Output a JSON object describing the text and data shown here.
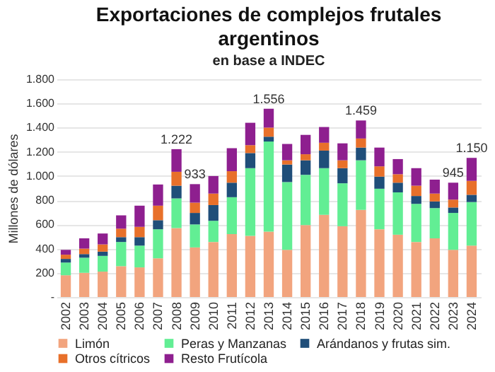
{
  "chart_data": {
    "type": "bar",
    "stacked": true,
    "title": [
      "Exportaciones de complejos frutales",
      "argentinos"
    ],
    "subtitle": "en base a INDEC",
    "ylabel": "Millones de dólares",
    "categories": [
      "2002",
      "2003",
      "2004",
      "2005",
      "2006",
      "2007",
      "2008",
      "2009",
      "2010",
      "2011",
      "2012",
      "2013",
      "2014",
      "2015",
      "2016",
      "2017",
      "2018",
      "2019",
      "2020",
      "2021",
      "2022",
      "2023",
      "2024"
    ],
    "series": [
      {
        "name": "Limón",
        "color": "#f2a47e",
        "values": [
          180,
          200,
          210,
          255,
          245,
          320,
          570,
          410,
          455,
          520,
          505,
          540,
          390,
          595,
          680,
          585,
          720,
          560,
          515,
          455,
          485,
          390,
          425
        ]
      },
      {
        "name": "Peras y Manzanas",
        "color": "#62ee94",
        "values": [
          105,
          125,
          130,
          200,
          180,
          240,
          245,
          190,
          175,
          305,
          560,
          745,
          560,
          415,
          385,
          355,
          410,
          335,
          350,
          315,
          250,
          305,
          360
        ]
      },
      {
        "name": "Arándanos y frutas sim.",
        "color": "#1f4e79",
        "values": [
          30,
          30,
          35,
          40,
          70,
          75,
          105,
          95,
          130,
          120,
          125,
          40,
          145,
          120,
          145,
          125,
          105,
          100,
          80,
          65,
          55,
          45,
          60
        ]
      },
      {
        "name": "Otros cítricos",
        "color": "#e8702a",
        "values": [
          35,
          45,
          60,
          70,
          85,
          120,
          115,
          85,
          95,
          95,
          65,
          75,
          35,
          50,
          65,
          65,
          75,
          85,
          70,
          85,
          65,
          65,
          115
        ]
      },
      {
        "name": "Resto Frutícola",
        "color": "#8e1f8f",
        "values": [
          40,
          85,
          90,
          110,
          175,
          175,
          187,
          153,
          145,
          190,
          185,
          156,
          135,
          160,
          130,
          140,
          149,
          155,
          125,
          145,
          115,
          140,
          190
        ]
      }
    ],
    "totals": [
      null,
      null,
      null,
      null,
      null,
      null,
      "1.222",
      "933",
      null,
      null,
      null,
      "1.556",
      null,
      null,
      null,
      null,
      "1.459",
      null,
      null,
      null,
      null,
      "945",
      "1.150"
    ],
    "ylim": [
      0,
      1800
    ],
    "yticks": [
      {
        "value": 0,
        "label": "-"
      },
      {
        "value": 200,
        "label": "200"
      },
      {
        "value": 400,
        "label": "400"
      },
      {
        "value": 600,
        "label": "600"
      },
      {
        "value": 800,
        "label": "800"
      },
      {
        "value": 1000,
        "label": "1.000"
      },
      {
        "value": 1200,
        "label": "1.200"
      },
      {
        "value": 1400,
        "label": "1.400"
      },
      {
        "value": 1600,
        "label": "1.600"
      },
      {
        "value": 1800,
        "label": "1.800"
      }
    ],
    "grid": "y",
    "legend": "bottom"
  }
}
